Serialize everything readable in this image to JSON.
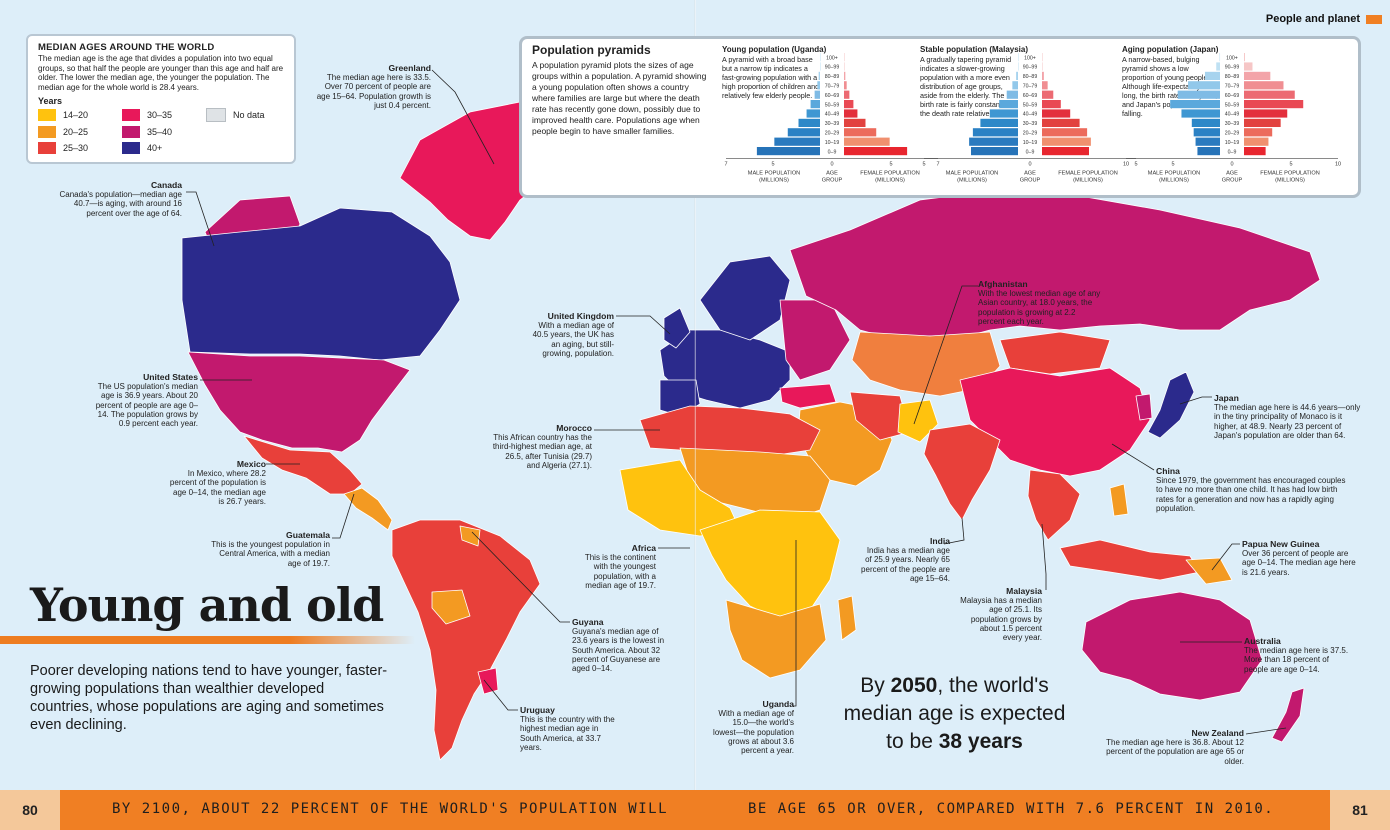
{
  "header": {
    "section": "People and planet"
  },
  "legend": {
    "title": "MEDIAN AGES AROUND THE WORLD",
    "text": "The median age is the age that divides a population into two equal groups, so that half the people are younger than this age and half are older. The lower the median age, the younger the population. The median age for the whole world is 28.4 years.",
    "years_label": "Years",
    "items": [
      {
        "label": "14–20",
        "color": "#ffc20e"
      },
      {
        "label": "30–35",
        "color": "#e8185a"
      },
      {
        "label": "No data",
        "color": "#dfe3e6"
      },
      {
        "label": "20–25",
        "color": "#f39a22"
      },
      {
        "label": "35–40",
        "color": "#c2196e"
      },
      {
        "label": "",
        "color": ""
      },
      {
        "label": "25–30",
        "color": "#e8403a"
      },
      {
        "label": "40+",
        "color": "#2b2a8c"
      }
    ]
  },
  "pyramids": {
    "title": "Population pyramids",
    "text": "A population pyramid plots the sizes of age groups within a population. A pyramid showing a young population often shows a country where families are large but where the death rate has recently gone down, possibly due to improved health care. Populations age when people begin to have smaller families.",
    "age_groups": [
      "100+",
      "90–99",
      "80–89",
      "70–79",
      "60–69",
      "50–59",
      "40–49",
      "30–39",
      "20–29",
      "10–19",
      "0–9"
    ],
    "axis_male": "MALE POPULATION (MILLIONS)",
    "axis_age": "AGE GROUP",
    "axis_female": "FEMALE POPULATION (MILLIONS)",
    "charts": [
      {
        "title": "Young population (Uganda)",
        "text": "A pyramid with a broad base but a narrow tip indicates a fast-growing population with a high proportion of children and relatively few elderly people.",
        "max": 7,
        "ticks": [
          "7",
          "5",
          "0",
          "5",
          "7"
        ],
        "male": [
          0,
          0,
          0.1,
          0.2,
          0.4,
          0.7,
          1.0,
          1.6,
          2.4,
          3.4,
          4.7
        ],
        "female": [
          0,
          0,
          0.1,
          0.2,
          0.4,
          0.7,
          1.0,
          1.6,
          2.4,
          3.4,
          4.7
        ]
      },
      {
        "title": "Stable population (Malaysia)",
        "text": "A gradually tapering pyramid indicates a slower-growing population with a more even distribution of age groups, aside from the elderly. The birth rate is fairly constant and the death rate relatively low.",
        "max": 5,
        "ticks": [
          "5",
          "0",
          "5"
        ],
        "male": [
          0,
          0,
          0.1,
          0.3,
          0.6,
          1.0,
          1.5,
          2.0,
          2.4,
          2.6,
          2.5
        ],
        "female": [
          0,
          0,
          0.1,
          0.3,
          0.6,
          1.0,
          1.5,
          2.0,
          2.4,
          2.6,
          2.5
        ]
      },
      {
        "title": "Aging population (Japan)",
        "text": "A narrow-based, bulging pyramid shows a low proportion of young people. Although life-expectancy is long, the birth rate is very low, and Japan's population is falling.",
        "max": 10,
        "ticks": [
          "10",
          "5",
          "0",
          "5",
          "10"
        ],
        "male": [
          0.05,
          0.4,
          1.6,
          3.4,
          4.5,
          5.3,
          4.1,
          3.0,
          2.8,
          2.6,
          2.4
        ],
        "female": [
          0.1,
          0.9,
          2.8,
          4.2,
          5.4,
          6.3,
          4.6,
          3.9,
          3.0,
          2.6,
          2.3
        ]
      }
    ]
  },
  "places": [
    {
      "name": "Greenland",
      "text": "The median age here is 33.5. Over 70 percent of people are age 15–64. Population growth is just 0.4 percent."
    },
    {
      "name": "Canada",
      "text": "Canada's population—median age 40.7—is aging, with around 16 percent over the age of 64."
    },
    {
      "name": "United Kingdom",
      "text": "With a median age of 40.5 years, the UK has an aging, but still-growing, population."
    },
    {
      "name": "Afghanistan",
      "text": "With the lowest median age of any Asian country, at 18.0 years, the population is growing at 2.2 percent each year."
    },
    {
      "name": "United States",
      "text": "The US population's median age is 36.9 years. About 20 percent of people are age 0–14. The population grows by 0.9 percent each year."
    },
    {
      "name": "Morocco",
      "text": "This African country has the third-highest median age, at 26.5, after Tunisia (29.7) and Algeria (27.1)."
    },
    {
      "name": "Japan",
      "text": "The median age here is 44.6 years—only in the tiny principality of Monaco is it higher, at 48.9. Nearly 23 percent of Japan's population are older than 64."
    },
    {
      "name": "Mexico",
      "text": "In Mexico, where 28.2 percent of the population is age 0–14, the median age is 26.7 years."
    },
    {
      "name": "China",
      "text": "Since 1979, the government has encouraged couples to have no more than one child. It has had low birth rates for a generation and now has a rapidly aging population."
    },
    {
      "name": "Guatemala",
      "text": "This is the youngest population in Central America, with a median age of 19.7."
    },
    {
      "name": "Africa",
      "text": "This is the continent with the youngest population, with a median age of 19.7."
    },
    {
      "name": "India",
      "text": "India has a median age of 25.9 years. Nearly 65 percent of the people are age 15–64."
    },
    {
      "name": "Papua New Guinea",
      "text": "Over 36 percent of people are age 0–14. The median age here is 21.6 years."
    },
    {
      "name": "Malaysia",
      "text": "Malaysia has a median age of 25.1. Its population grows by about 1.5 percent every year."
    },
    {
      "name": "Guyana",
      "text": "Guyana's median age of 23.6 years is the lowest in South America. About 32 percent of Guyanese are aged 0–14."
    },
    {
      "name": "Australia",
      "text": "The median age here is 37.5. More than 18 percent of people are age 0–14."
    },
    {
      "name": "Uganda",
      "text": "With a median age of 15.0—the world's lowest—the population grows at about 3.6 percent a year."
    },
    {
      "name": "Uruguay",
      "text": "This is the country with the highest median age in South America, at 33.7 years."
    },
    {
      "name": "New Zealand",
      "text": "The median age here is 36.8. About 12 percent of the population are age 65 or older."
    }
  ],
  "headline": "Young and old",
  "intro": "Poorer developing nations tend to have younger, faster-growing populations than wealthier developed countries, whose populations are aging and sometimes even declining.",
  "stat": {
    "pre": "By ",
    "year": "2050",
    "mid": ", the world's median age is expected to be ",
    "value": "38 years"
  },
  "footer": {
    "left_page": "80",
    "right_page": "81",
    "left_text": "BY 2100, ABOUT 22 PERCENT OF THE WORLD'S POPULATION WILL",
    "right_text": "BE AGE 65 OR OVER, COMPARED WITH 7.6 PERCENT IN 2010."
  }
}
